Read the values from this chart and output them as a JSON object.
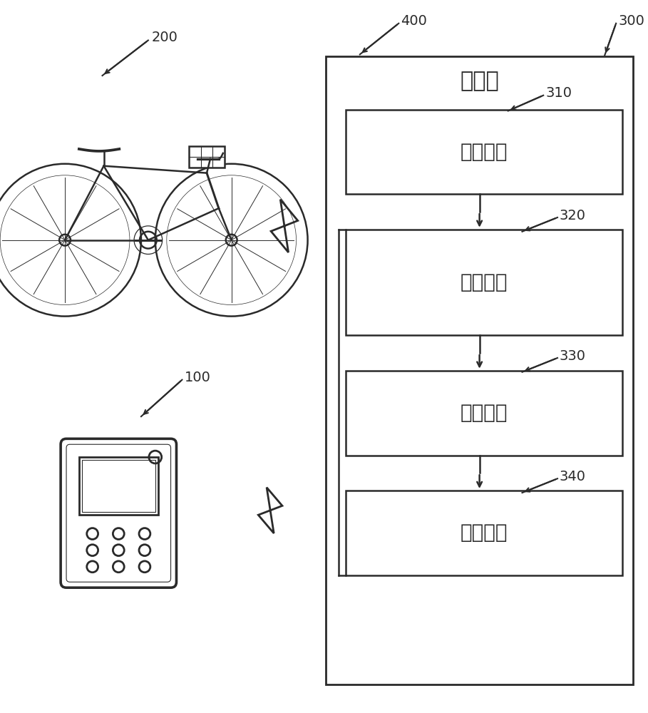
{
  "bg_color": "#ffffff",
  "line_color": "#2a2a2a",
  "text_color": "#2a2a2a",
  "label_200": "200",
  "label_100": "100",
  "label_400": "400",
  "label_300": "300",
  "label_310": "310",
  "label_320": "320",
  "label_330": "330",
  "label_340": "340",
  "server_title": "服务器",
  "box_310_label": "获取电路",
  "box_320_label": "比对电路",
  "box_330_label": "存储电路",
  "box_340_label": "识别电路"
}
